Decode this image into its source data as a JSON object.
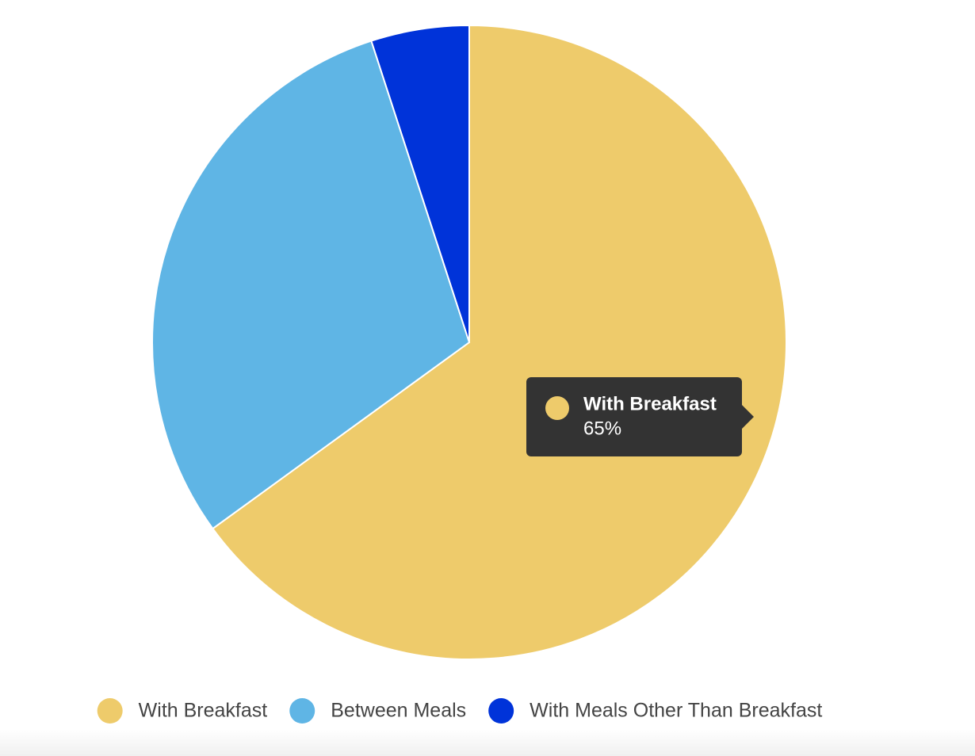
{
  "chart_data": {
    "type": "pie",
    "categories": [
      "With Breakfast",
      "Between Meals",
      "With Meals Other Than Breakfast"
    ],
    "values": [
      65,
      30,
      5
    ],
    "colors": [
      "#eecb6b",
      "#5fb5e5",
      "#0033d9"
    ],
    "legend": "bottom",
    "tooltip": {
      "category": "With Breakfast",
      "label": "65%"
    }
  }
}
